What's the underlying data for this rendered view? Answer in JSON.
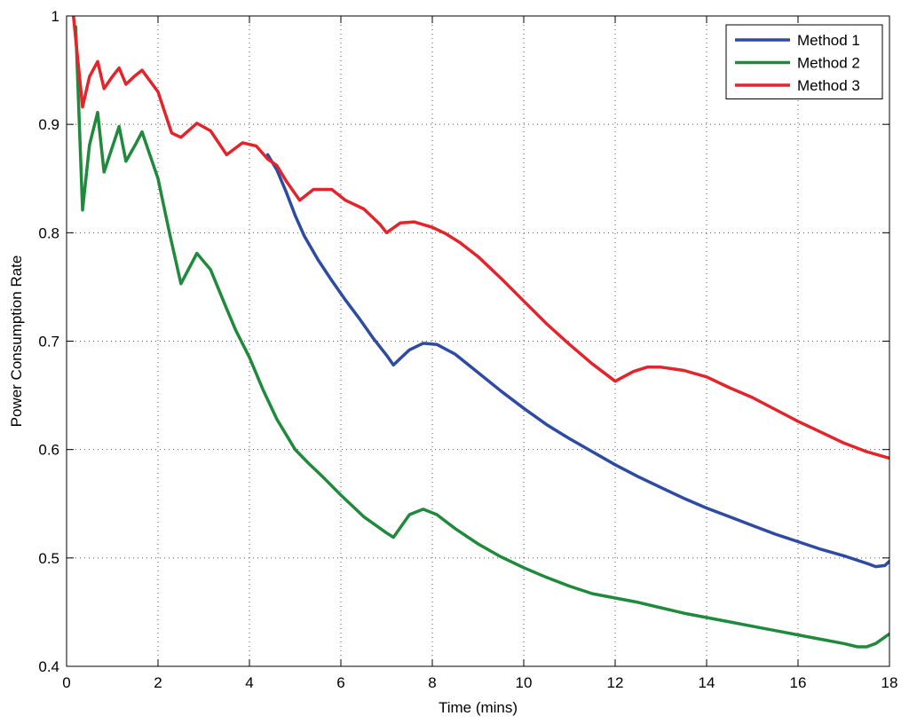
{
  "chart_data": {
    "type": "line",
    "title": "",
    "xlabel": "Time (mins)",
    "ylabel": "Power Consumption Rate",
    "xlim": [
      0,
      18
    ],
    "ylim": [
      0.4,
      1
    ],
    "xticks": [
      0,
      2,
      4,
      6,
      8,
      10,
      12,
      14,
      16,
      18
    ],
    "yticks": [
      0.4,
      0.5,
      0.6,
      0.7,
      0.8,
      0.9,
      1
    ],
    "xtick_labels": [
      "0",
      "2",
      "4",
      "6",
      "8",
      "10",
      "12",
      "14",
      "16",
      "18"
    ],
    "ytick_labels": [
      "0.4",
      "0.5",
      "0.6",
      "0.7",
      "0.8",
      "0.9",
      "1"
    ],
    "grid": true,
    "legend_position": "top-right",
    "series": [
      {
        "name": "Method 1",
        "color": "#2e4ba3",
        "x": [
          4.4,
          4.6,
          4.8,
          5.0,
          5.2,
          5.5,
          5.8,
          6.1,
          6.4,
          6.7,
          7.0,
          7.15,
          7.3,
          7.5,
          7.8,
          8.1,
          8.5,
          9.0,
          9.5,
          10.0,
          10.5,
          11.0,
          11.5,
          12.0,
          12.5,
          13.0,
          13.5,
          14.0,
          14.5,
          15.0,
          15.5,
          16.0,
          16.5,
          17.0,
          17.5,
          17.7,
          17.9,
          18.0
        ],
        "y": [
          0.872,
          0.858,
          0.838,
          0.816,
          0.797,
          0.775,
          0.756,
          0.738,
          0.721,
          0.703,
          0.687,
          0.678,
          0.684,
          0.692,
          0.698,
          0.697,
          0.688,
          0.671,
          0.654,
          0.638,
          0.623,
          0.61,
          0.598,
          0.586,
          0.575,
          0.565,
          0.555,
          0.546,
          0.538,
          0.53,
          0.522,
          0.515,
          0.508,
          0.502,
          0.495,
          0.492,
          0.493,
          0.497
        ]
      },
      {
        "name": "Method 2",
        "color": "#1f8a3c",
        "x": [
          0.2,
          0.35,
          0.5,
          0.68,
          0.82,
          1.0,
          1.15,
          1.3,
          1.5,
          1.65,
          2.0,
          2.25,
          2.5,
          2.85,
          3.15,
          3.5,
          3.7,
          4.0,
          4.3,
          4.6,
          5.0,
          5.3,
          5.6,
          6.0,
          6.5,
          7.0,
          7.15,
          7.5,
          7.8,
          8.1,
          8.5,
          9.0,
          9.5,
          10.0,
          10.5,
          11.0,
          11.5,
          12.0,
          12.5,
          13.0,
          13.5,
          14.0,
          14.5,
          15.0,
          15.5,
          16.0,
          16.5,
          17.0,
          17.3,
          17.5,
          17.7,
          18.0
        ],
        "y": [
          0.99,
          0.821,
          0.881,
          0.911,
          0.856,
          0.879,
          0.898,
          0.866,
          0.881,
          0.893,
          0.85,
          0.8,
          0.753,
          0.781,
          0.766,
          0.73,
          0.71,
          0.685,
          0.655,
          0.628,
          0.6,
          0.587,
          0.575,
          0.558,
          0.538,
          0.523,
          0.519,
          0.54,
          0.545,
          0.54,
          0.527,
          0.513,
          0.501,
          0.491,
          0.482,
          0.474,
          0.467,
          0.463,
          0.459,
          0.454,
          0.449,
          0.445,
          0.441,
          0.437,
          0.433,
          0.429,
          0.425,
          0.421,
          0.418,
          0.418,
          0.421,
          0.43
        ]
      },
      {
        "name": "Method 3",
        "color": "#e3242b",
        "x": [
          0.15,
          0.35,
          0.5,
          0.68,
          0.82,
          1.0,
          1.15,
          1.3,
          1.5,
          1.65,
          2.0,
          2.3,
          2.5,
          2.85,
          3.15,
          3.5,
          3.85,
          4.15,
          4.4,
          4.6,
          4.8,
          5.1,
          5.4,
          5.8,
          6.1,
          6.5,
          6.85,
          7.0,
          7.3,
          7.6,
          8.0,
          8.3,
          8.6,
          9.0,
          9.5,
          10.0,
          10.5,
          11.0,
          11.5,
          12.0,
          12.4,
          12.7,
          13.0,
          13.5,
          14.0,
          14.5,
          15.0,
          15.5,
          16.0,
          16.5,
          17.0,
          17.5,
          18.0
        ],
        "y": [
          1.0,
          0.916,
          0.944,
          0.958,
          0.933,
          0.944,
          0.952,
          0.937,
          0.945,
          0.95,
          0.93,
          0.892,
          0.888,
          0.901,
          0.894,
          0.872,
          0.883,
          0.88,
          0.868,
          0.862,
          0.848,
          0.83,
          0.84,
          0.84,
          0.83,
          0.822,
          0.808,
          0.8,
          0.809,
          0.81,
          0.805,
          0.799,
          0.791,
          0.778,
          0.758,
          0.737,
          0.716,
          0.697,
          0.679,
          0.663,
          0.672,
          0.676,
          0.676,
          0.673,
          0.667,
          0.657,
          0.648,
          0.637,
          0.626,
          0.616,
          0.606,
          0.598,
          0.592
        ]
      }
    ]
  }
}
